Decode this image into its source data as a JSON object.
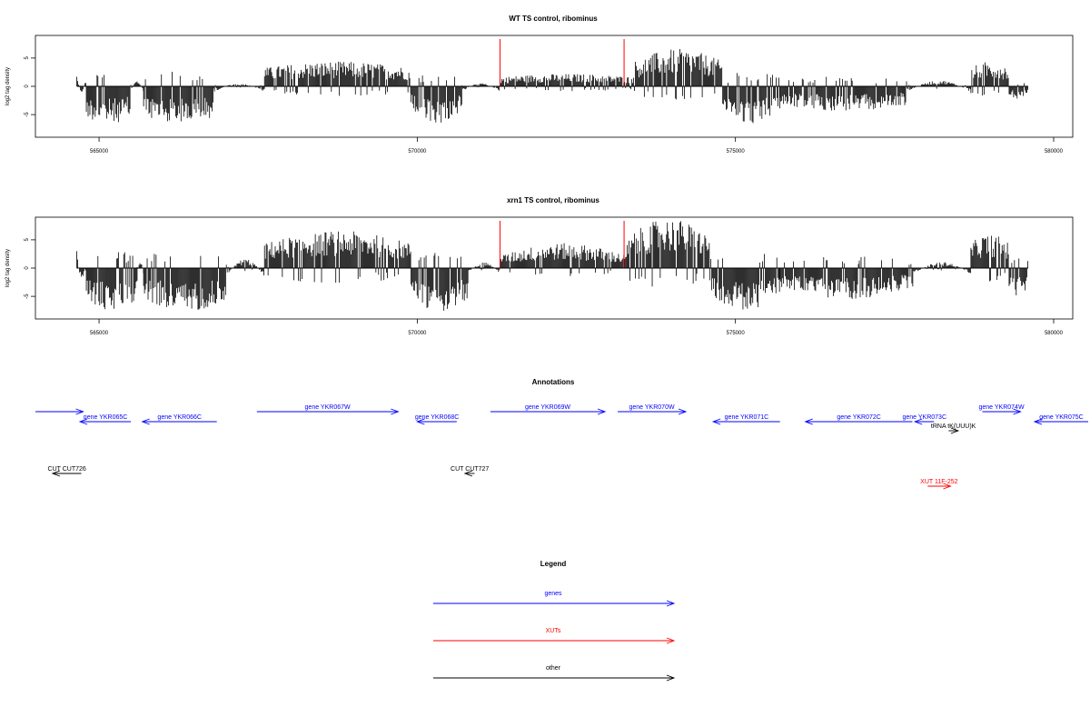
{
  "chart_data": [
    {
      "type": "bar",
      "title": "WT TS control, ribominus",
      "ylabel": "log2 tag density",
      "xlim": [
        564000,
        580300
      ],
      "ylim": [
        -9,
        9
      ],
      "xticks": [
        565000,
        570000,
        575000,
        580000
      ],
      "yticks": [
        -5,
        0,
        5
      ],
      "x_range": [
        564650,
        579600
      ],
      "red_markers": [
        571300,
        573250
      ],
      "segments": [
        {
          "x": [
            564650,
            564800
          ],
          "values": [
            2,
            -1
          ]
        },
        {
          "x": [
            564800,
            565500
          ],
          "values": [
            -5,
            -6
          ]
        },
        {
          "x": [
            565500,
            565700
          ],
          "values": [
            -1,
            1
          ]
        },
        {
          "x": [
            565700,
            566800
          ],
          "values": [
            -5,
            -6
          ]
        },
        {
          "x": [
            566800,
            567600
          ],
          "values": [
            -1,
            0.5
          ]
        },
        {
          "x": [
            567600,
            569900
          ],
          "values": [
            3,
            4
          ]
        },
        {
          "x": [
            569900,
            570700
          ],
          "values": [
            -4,
            -6
          ]
        },
        {
          "x": [
            570700,
            571300
          ],
          "values": [
            -1,
            0.5
          ]
        },
        {
          "x": [
            571300,
            573400
          ],
          "values": [
            1.5,
            2
          ]
        },
        {
          "x": [
            573400,
            574800
          ],
          "values": [
            4,
            6
          ]
        },
        {
          "x": [
            574800,
            575700
          ],
          "values": [
            -4,
            -6
          ]
        },
        {
          "x": [
            575700,
            577700
          ],
          "values": [
            -3,
            -4
          ]
        },
        {
          "x": [
            577700,
            578700
          ],
          "values": [
            -1,
            1
          ]
        },
        {
          "x": [
            578700,
            579300
          ],
          "values": [
            3,
            4
          ]
        },
        {
          "x": [
            579300,
            579600
          ],
          "values": [
            -1.5,
            -2
          ]
        }
      ]
    },
    {
      "type": "bar",
      "title": "xrn1 TS control, ribominus",
      "ylabel": "log2 tag density",
      "xlim": [
        564000,
        580300
      ],
      "ylim": [
        -9,
        9
      ],
      "xticks": [
        565000,
        570000,
        575000,
        580000
      ],
      "yticks": [
        -5,
        0,
        5
      ],
      "x_range": [
        564650,
        579600
      ],
      "red_markers": [
        571300,
        573250
      ],
      "segments": [
        {
          "x": [
            564650,
            564800
          ],
          "values": [
            3,
            -2
          ]
        },
        {
          "x": [
            564800,
            565600
          ],
          "values": [
            -5,
            -7
          ]
        },
        {
          "x": [
            565600,
            565700
          ],
          "values": [
            -1,
            1
          ]
        },
        {
          "x": [
            565700,
            567000
          ],
          "values": [
            -5,
            -7
          ]
        },
        {
          "x": [
            567000,
            567600
          ],
          "values": [
            -1.5,
            1.5
          ]
        },
        {
          "x": [
            567600,
            569900
          ],
          "values": [
            4,
            6
          ]
        },
        {
          "x": [
            569900,
            570800
          ],
          "values": [
            -5,
            -7
          ]
        },
        {
          "x": [
            570800,
            571300
          ],
          "values": [
            -1,
            1
          ]
        },
        {
          "x": [
            571300,
            573300
          ],
          "values": [
            2,
            4
          ]
        },
        {
          "x": [
            573300,
            574600
          ],
          "values": [
            5,
            8
          ]
        },
        {
          "x": [
            574600,
            575700
          ],
          "values": [
            -4,
            -7
          ]
        },
        {
          "x": [
            575700,
            577800
          ],
          "values": [
            -3,
            -5
          ]
        },
        {
          "x": [
            577800,
            578700
          ],
          "values": [
            -1,
            1
          ]
        },
        {
          "x": [
            578700,
            579300
          ],
          "values": [
            4,
            5.5
          ]
        },
        {
          "x": [
            579300,
            579600
          ],
          "values": [
            -3,
            -4.5
          ]
        }
      ]
    }
  ],
  "annotations": {
    "title": "Annotations",
    "features": [
      {
        "label": "gene YKR065C",
        "start": 564700,
        "end": 565500,
        "strand": "-",
        "row": 1,
        "kind": "genes"
      },
      {
        "label": "gene YKR066C",
        "start": 565680,
        "end": 566850,
        "strand": "-",
        "row": 1,
        "kind": "genes"
      },
      {
        "label": "gene YKR067W",
        "start": 567480,
        "end": 569700,
        "strand": "+",
        "row": 0,
        "kind": "genes"
      },
      {
        "label": "gene YKR068C",
        "start": 570000,
        "end": 570620,
        "strand": "-",
        "row": 1,
        "kind": "genes"
      },
      {
        "label": "gene YKR069W",
        "start": 571150,
        "end": 572950,
        "strand": "+",
        "row": 0,
        "kind": "genes"
      },
      {
        "label": "gene YKR070W",
        "start": 573150,
        "end": 574220,
        "strand": "+",
        "row": 0,
        "kind": "genes"
      },
      {
        "label": "gene YKR071C",
        "start": 574650,
        "end": 575700,
        "strand": "-",
        "row": 1,
        "kind": "genes"
      },
      {
        "label": "gene YKR072C",
        "start": 576100,
        "end": 577780,
        "strand": "-",
        "row": 1,
        "kind": "genes"
      },
      {
        "label": "gene YKR073C",
        "start": 577820,
        "end": 578120,
        "strand": "-",
        "row": 1,
        "kind": "genes"
      },
      {
        "label": "gene YKR074W",
        "start": 578880,
        "end": 579480,
        "strand": "+",
        "row": 0,
        "kind": "genes"
      },
      {
        "label": "gene YKR075C",
        "start": 579700,
        "end": 580800,
        "strand": "-",
        "row": 1,
        "kind": "genes"
      },
      {
        "label": "tRNA tK(UUU)K",
        "start": 578350,
        "end": 578500,
        "strand": "+",
        "row": 2,
        "kind": "other"
      },
      {
        "label": "CUT CUT726",
        "start": 564270,
        "end": 564720,
        "strand": "-",
        "row": 4,
        "kind": "other"
      },
      {
        "label": "CUT CUT727",
        "start": 570750,
        "end": 570900,
        "strand": "-",
        "row": 4,
        "kind": "other"
      },
      {
        "label": "XUT 11F-252",
        "start": 578020,
        "end": 578380,
        "strand": "+",
        "row": 5,
        "kind": "XUTs"
      }
    ],
    "lead_arrow": {
      "start": 564000,
      "end": 564750,
      "strand": "+",
      "row": 0,
      "kind": "genes"
    }
  },
  "legend": {
    "title": "Legend",
    "items": [
      {
        "label": "genes",
        "color": "#0000ff"
      },
      {
        "label": "XUTs",
        "color": "#ff0000"
      },
      {
        "label": "other",
        "color": "#000000"
      }
    ]
  },
  "colors": {
    "genes": "#0000ff",
    "XUTs": "#ff0000",
    "other": "#000000",
    "marker": "#ff0000"
  }
}
